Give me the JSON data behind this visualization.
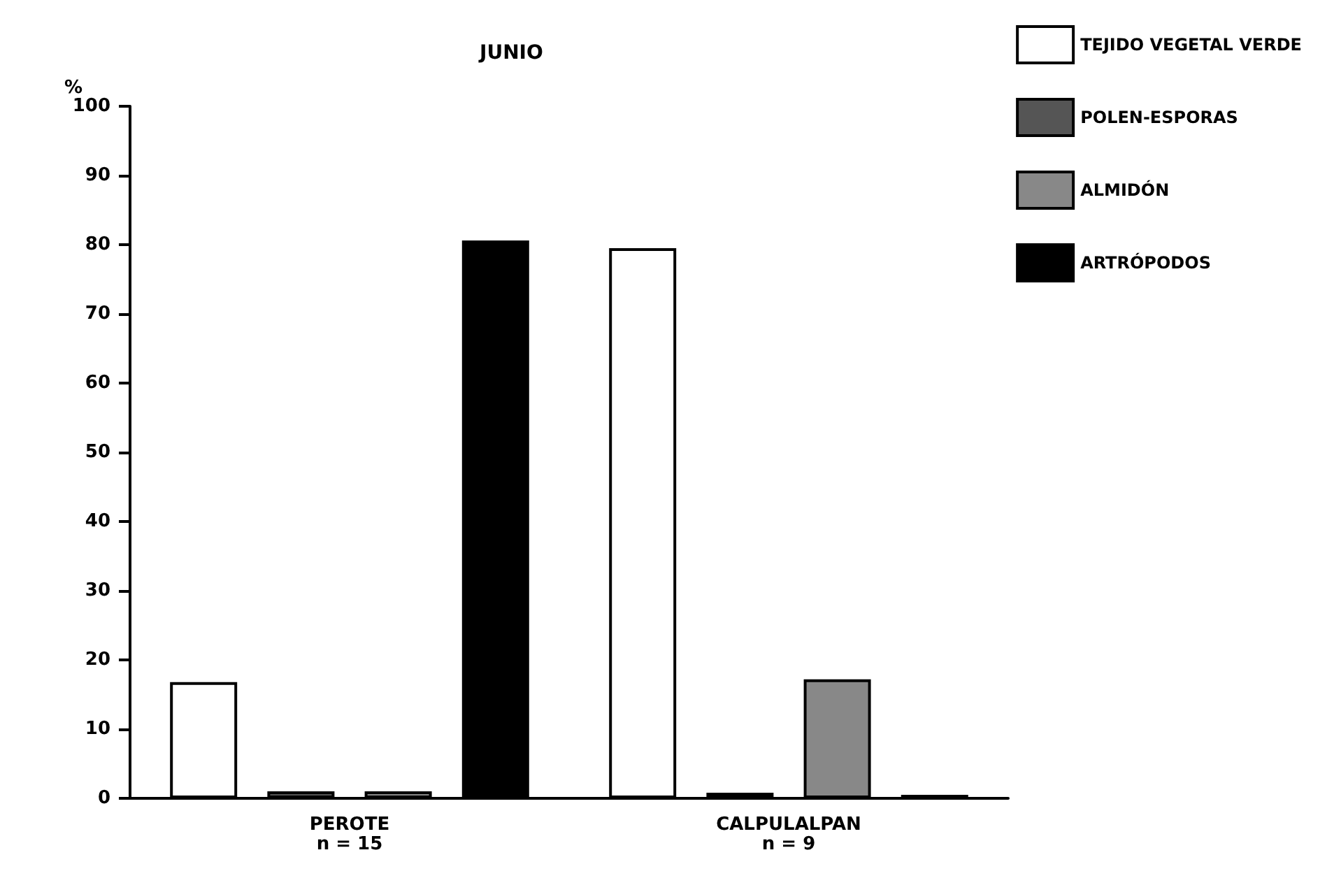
{
  "chart_data": {
    "type": "bar",
    "title": "JUNIO",
    "ylabel": "%",
    "categories": [
      "PEROTE\nn = 15",
      "CALPULALPAN\nn = 9"
    ],
    "series": [
      {
        "name": "TEJIDO VEGETAL VERDE",
        "color": "#ffffff",
        "values": [
          16.8,
          79.5
        ]
      },
      {
        "name": "POLEN-ESPORAS",
        "color": "#555555",
        "values": [
          1,
          0.8
        ]
      },
      {
        "name": "ALMIDÓN",
        "color": "#888888",
        "values": [
          1,
          17.2
        ]
      },
      {
        "name": "ARTRÓPODOS",
        "color": "#000000",
        "values": [
          80.6,
          0.5
        ]
      }
    ],
    "ylim": [
      0,
      100
    ],
    "yticks": [
      0,
      10,
      20,
      30,
      40,
      50,
      60,
      70,
      80,
      90,
      100
    ],
    "grid": false,
    "legend": "top right"
  }
}
